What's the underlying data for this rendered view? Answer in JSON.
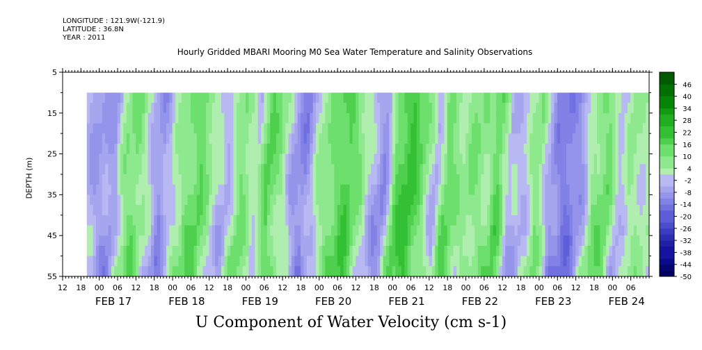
{
  "header": {
    "longitude": "LONGITUDE : 121.9W(-121.9)",
    "latitude": "LATITUDE : 36.8N",
    "year": "YEAR : 2011"
  },
  "chart_data": {
    "type": "heatmap",
    "title": "Hourly Gridded MBARI Mooring M0 Sea Water Temperature and Salinity Observations",
    "xlabel": "U Component of Water Velocity (cm s-1)",
    "ylabel": "DEPTH (m)",
    "y_ticks": [
      5,
      15,
      25,
      35,
      45,
      55
    ],
    "ylim": [
      55,
      5
    ],
    "data_depth_range": [
      10,
      55
    ],
    "x_hour_ticks": [
      "12",
      "18",
      "00",
      "06",
      "12",
      "18",
      "00",
      "06",
      "12",
      "18",
      "00",
      "06",
      "12",
      "18",
      "00",
      "06",
      "12",
      "18",
      "00",
      "06",
      "12",
      "18",
      "00",
      "06",
      "12",
      "18",
      "00",
      "06",
      "12",
      "18",
      "00",
      "06"
    ],
    "x_day_labels": [
      "FEB 17",
      "FEB 18",
      "FEB 19",
      "FEB 20",
      "FEB 21",
      "FEB 22",
      "FEB 23",
      "FEB 24"
    ],
    "x_range_days": [
      16.25,
      24.25
    ],
    "data_start_day": 16.58,
    "colorbar": {
      "labels": [
        46,
        40,
        34,
        28,
        22,
        16,
        10,
        4,
        -2,
        -8,
        -14,
        -20,
        -26,
        -32,
        -38,
        -44,
        -50
      ],
      "range": [
        -50,
        52
      ],
      "step": 3,
      "colors_positive": [
        "#b0eeb0",
        "#8ee88e",
        "#6cdf6c",
        "#4ed04e",
        "#34c034",
        "#1fae1f",
        "#0f9a0f",
        "#058505",
        "#007000",
        "#005a00"
      ],
      "colors_negative": [
        "#b8b8f2",
        "#a6a6ee",
        "#9494ea",
        "#8282e6",
        "#7070e0",
        "#5e5ed8",
        "#4c4cce",
        "#3c3cc2",
        "#2d2db4",
        "#2020a4",
        "#1414a0",
        "#0a0a8c",
        "#060670",
        "#000060"
      ]
    },
    "u_profile_by_day": [
      [
        16.58,
        -3
      ],
      [
        16.75,
        -6
      ],
      [
        17.0,
        -8
      ],
      [
        17.15,
        8
      ],
      [
        17.3,
        12
      ],
      [
        17.5,
        -2
      ],
      [
        17.65,
        -10
      ],
      [
        17.85,
        4
      ],
      [
        18.0,
        10
      ],
      [
        18.2,
        14
      ],
      [
        18.35,
        2
      ],
      [
        18.55,
        -4
      ],
      [
        18.75,
        12
      ],
      [
        18.95,
        -2
      ],
      [
        19.1,
        16
      ],
      [
        19.3,
        6
      ],
      [
        19.45,
        -6
      ],
      [
        19.6,
        -12
      ],
      [
        19.8,
        4
      ],
      [
        20.0,
        12
      ],
      [
        20.2,
        18
      ],
      [
        20.35,
        8
      ],
      [
        20.5,
        -2
      ],
      [
        20.7,
        -10
      ],
      [
        20.85,
        14
      ],
      [
        21.05,
        22
      ],
      [
        21.25,
        8
      ],
      [
        21.4,
        -4
      ],
      [
        21.55,
        14
      ],
      [
        21.75,
        4
      ],
      [
        21.9,
        10
      ],
      [
        22.1,
        6
      ],
      [
        22.25,
        16
      ],
      [
        22.4,
        -4
      ],
      [
        22.6,
        -2
      ],
      [
        22.8,
        10
      ],
      [
        23.0,
        -10
      ],
      [
        23.2,
        -14
      ],
      [
        23.4,
        -6
      ],
      [
        23.55,
        8
      ],
      [
        23.75,
        12
      ],
      [
        23.9,
        -4
      ],
      [
        24.05,
        6
      ],
      [
        24.25,
        2
      ]
    ]
  }
}
